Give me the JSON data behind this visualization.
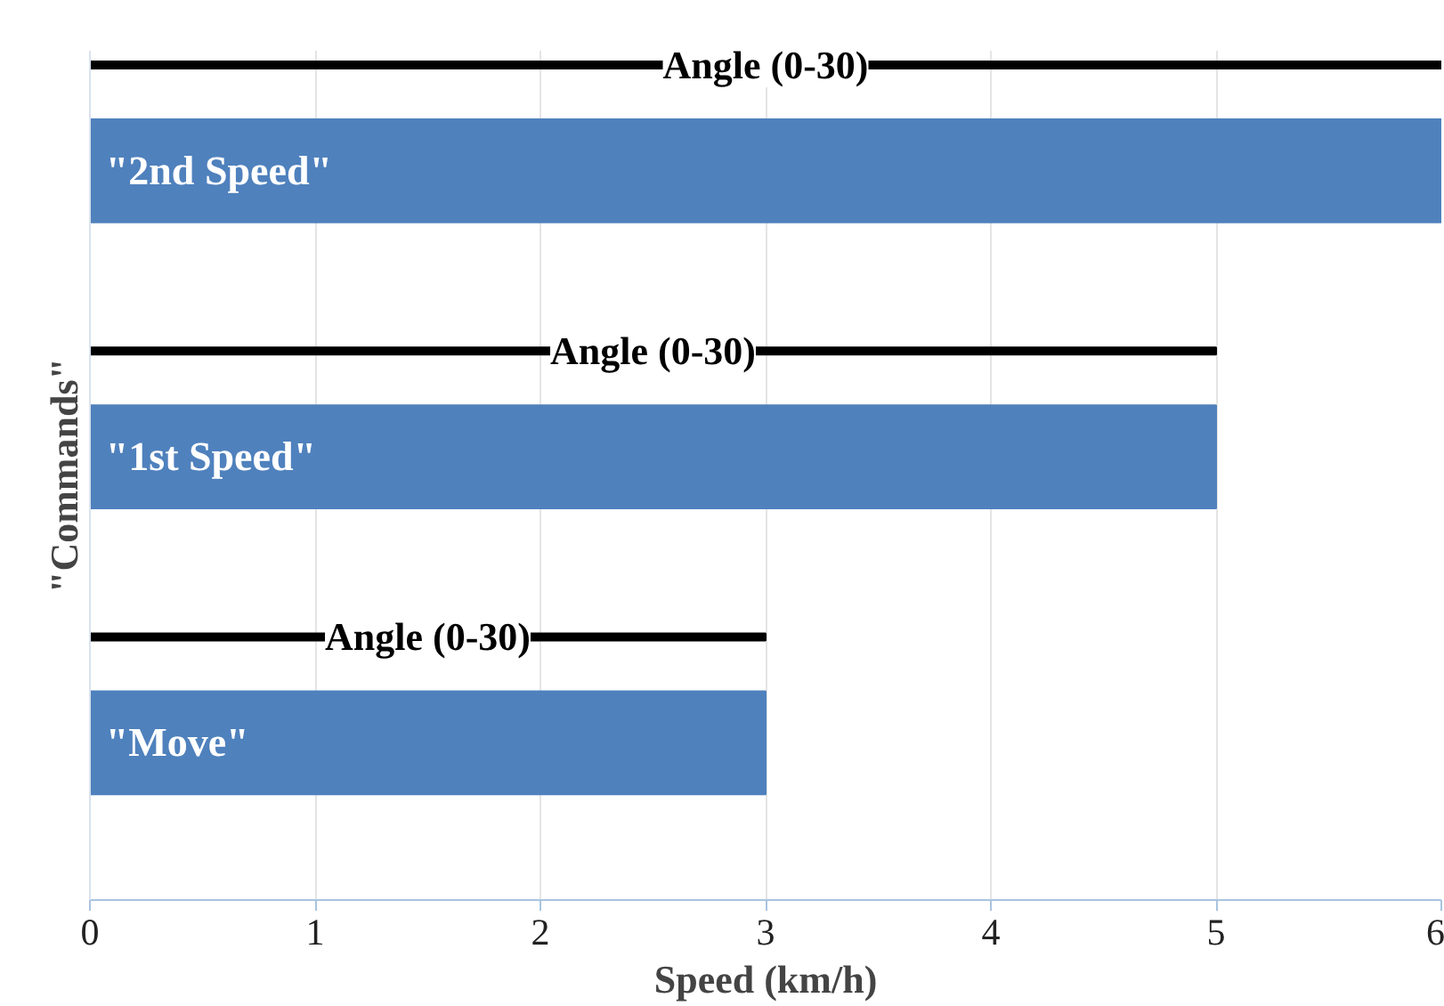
{
  "chart_data": {
    "type": "bar",
    "orientation": "horizontal",
    "categories": [
      "\"2nd Speed\"",
      "\"1st Speed\"",
      "\"Move\""
    ],
    "series": [
      {
        "color": "#4f81bd",
        "values": [
          6,
          5,
          3
        ]
      },
      {
        "name": "Angle (0-30)",
        "color": "#000000",
        "values": [
          6,
          5,
          3
        ]
      }
    ],
    "xlabel": "Speed (km/h)",
    "ylabel": "\"Commands\"",
    "xlim": [
      0,
      6
    ],
    "xticks": [
      0,
      1,
      2,
      3,
      4,
      5,
      6
    ],
    "grid": "x",
    "tick_labels": "x"
  }
}
